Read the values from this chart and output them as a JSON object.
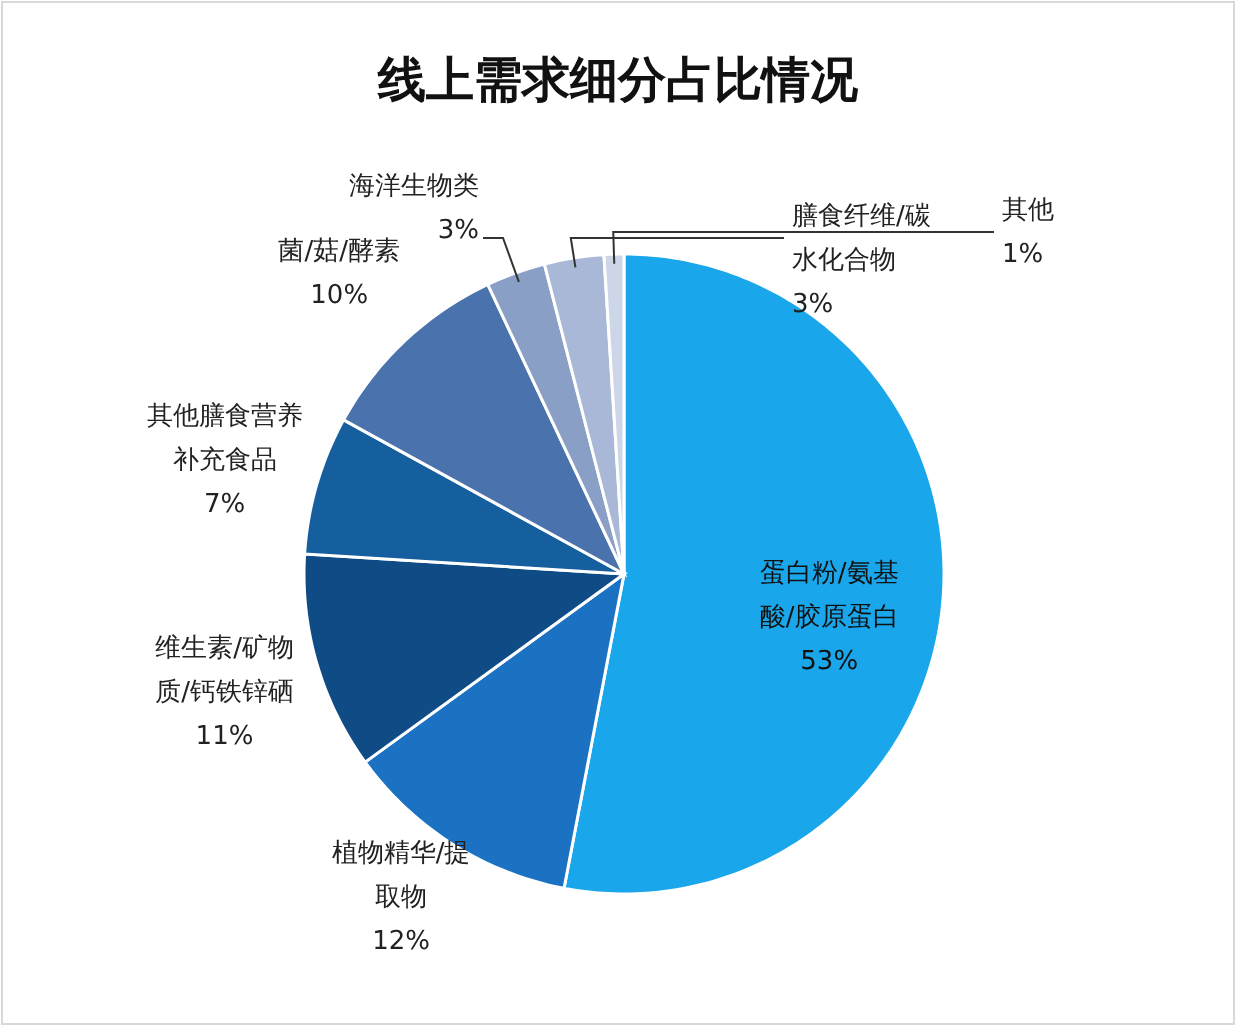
{
  "chart_data": {
    "type": "pie",
    "title": "线上需求细分占比情况",
    "categories": [
      "蛋白粉/氨基酸/胶原蛋白",
      "植物精华/提取物",
      "维生素/矿物质/钙铁锌硒",
      "其他膳食营养补充食品",
      "菌/菇/酵素",
      "海洋生物类",
      "膳食纤维/碳水化合物",
      "其他"
    ],
    "values": [
      53,
      12,
      11,
      7,
      10,
      3,
      3,
      1
    ],
    "colors": [
      "#1aa6ea",
      "#1b72c2",
      "#0f4c86",
      "#155f9e",
      "#4a72ad",
      "#8a9fc6",
      "#a9b8d6",
      "#cdd6e8"
    ],
    "value_labels": [
      "53%",
      "12%",
      "11%",
      "7%",
      "10%",
      "3%",
      "3%",
      "1%"
    ]
  }
}
